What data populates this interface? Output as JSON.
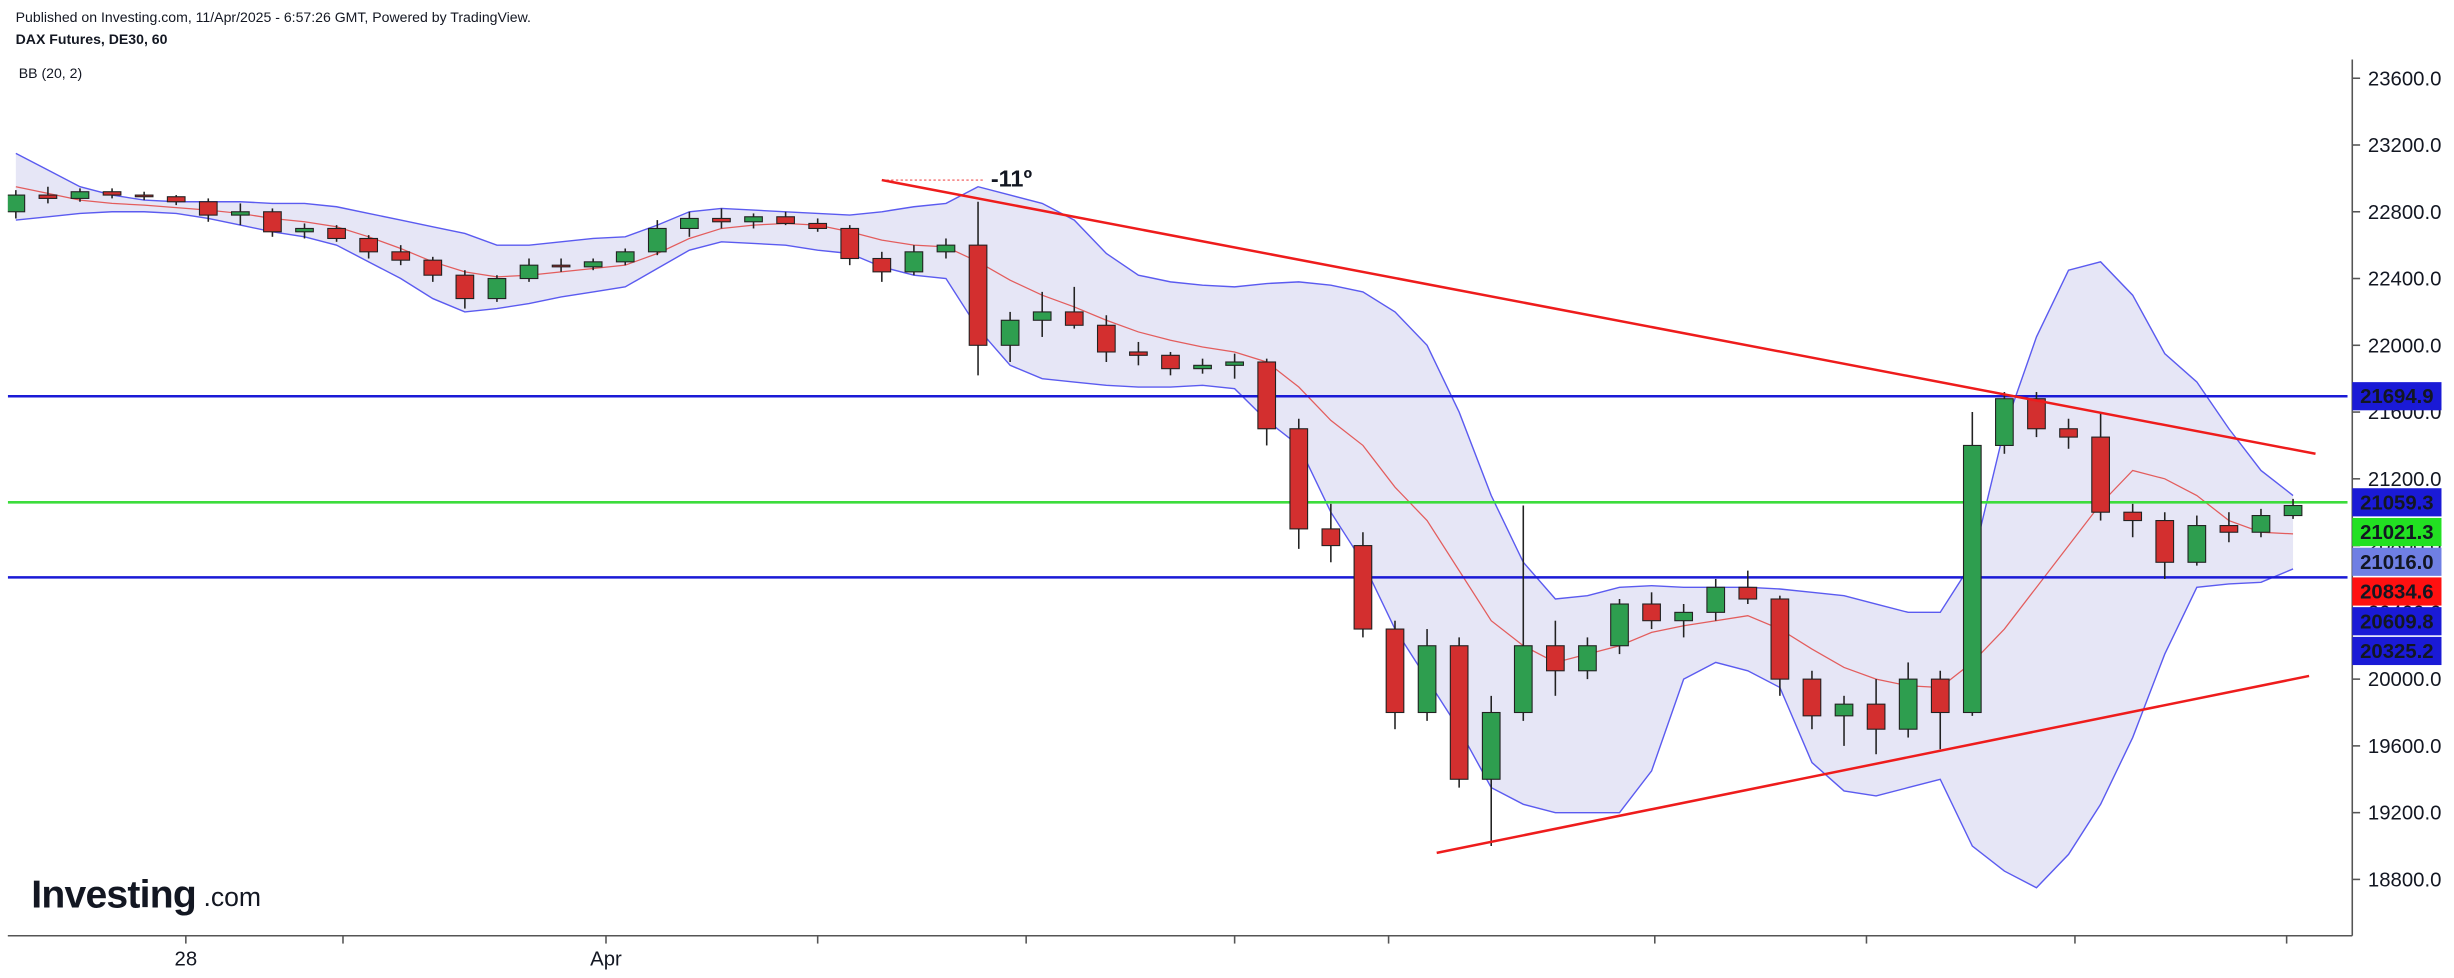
{
  "chart_data": {
    "type": "candlestick",
    "subtitle": "Published on Investing.com, 11/Apr/2025 - 6:57:26 GMT, Powered by TradingView.",
    "title": "DAX Futures, DE30, 60",
    "indicator_label": "BB (20, 2)",
    "logo": {
      "brand": "Investing",
      "suffix": ".com"
    },
    "xlim": [
      -0.25,
      72.7
    ],
    "ylim": [
      18462.5,
      23740.6
    ],
    "xticks": [
      {
        "value": 5.3,
        "label": "28"
      },
      {
        "value": 10.2,
        "label": null
      },
      {
        "value": 18.4,
        "label": "Apr"
      },
      {
        "value": 25,
        "label": null
      },
      {
        "value": 31.5,
        "label": null
      },
      {
        "value": 38,
        "label": null
      },
      {
        "value": 42.8,
        "label": null
      },
      {
        "value": 51.1,
        "label": null
      },
      {
        "value": 57.7,
        "label": null
      },
      {
        "value": 64.2,
        "label": null
      },
      {
        "value": 70.8,
        "label": null
      }
    ],
    "yticks": [
      {
        "value": 18800,
        "label": "18800.0"
      },
      {
        "value": 19200,
        "label": "19200.0"
      },
      {
        "value": 19600,
        "label": "19600.0"
      },
      {
        "value": 20000,
        "label": "20000.0"
      },
      {
        "value": 20400,
        "label": "20400.0"
      },
      {
        "value": 20800,
        "label": "20800.0"
      },
      {
        "value": 21200,
        "label": "21200.0"
      },
      {
        "value": 21600,
        "label": "21600.0"
      },
      {
        "value": 22000,
        "label": "22000.0"
      },
      {
        "value": 22400,
        "label": "22400.0"
      },
      {
        "value": 22800,
        "label": "22800.0"
      },
      {
        "value": 23200,
        "label": "23200.0"
      },
      {
        "value": 23600,
        "label": "23600.0"
      }
    ],
    "up_color": "#2e9e4f",
    "down_color": "#d32f2f",
    "ohlc": {
      "open": [
        22800,
        22900,
        22880,
        22920,
        22900,
        22890,
        22860,
        22780,
        22800,
        22680,
        22700,
        22640,
        22560,
        22510,
        22420,
        22280,
        22400,
        22480,
        22470,
        22500,
        22560,
        22700,
        22760,
        22740,
        22770,
        22730,
        22700,
        22520,
        22440,
        22560,
        22600,
        22000,
        22150,
        22200,
        22120,
        21960,
        21940,
        21860,
        21880,
        21900,
        21500,
        20900,
        20800,
        20300,
        19800,
        20200,
        19400,
        19800,
        20200,
        20050,
        20200,
        20450,
        20350,
        20400,
        20550,
        20480,
        20000,
        19780,
        19850,
        19700,
        20000,
        19800,
        21400,
        21680,
        21500,
        21450,
        21000,
        20950,
        20700,
        20920,
        20880,
        20980
      ],
      "high": [
        22930,
        22950,
        22940,
        22940,
        22920,
        22900,
        22880,
        22850,
        22820,
        22730,
        22720,
        22660,
        22600,
        22530,
        22450,
        22420,
        22520,
        22520,
        22520,
        22580,
        22750,
        22800,
        22820,
        22790,
        22800,
        22760,
        22720,
        22560,
        22600,
        22640,
        22860,
        22200,
        22320,
        22350,
        22180,
        22020,
        21960,
        21920,
        21950,
        21920,
        21560,
        21050,
        20880,
        20350,
        20300,
        20250,
        19900,
        21040,
        20350,
        20250,
        20480,
        20520,
        20450,
        20600,
        20650,
        20500,
        20050,
        19900,
        20000,
        20100,
        20050,
        21600,
        21720,
        21720,
        21560,
        21600,
        21050,
        21000,
        20980,
        21000,
        21020,
        21080
      ],
      "low": [
        22760,
        22850,
        22860,
        22880,
        22870,
        22840,
        22740,
        22720,
        22650,
        22640,
        22620,
        22520,
        22480,
        22380,
        22220,
        22260,
        22380,
        22440,
        22450,
        22480,
        22540,
        22650,
        22700,
        22700,
        22720,
        22680,
        22480,
        22380,
        22420,
        22520,
        21820,
        21900,
        22050,
        22100,
        21900,
        21880,
        21820,
        21830,
        21800,
        21400,
        20780,
        20700,
        20250,
        19700,
        19750,
        19350,
        19000,
        19750,
        19900,
        20000,
        20150,
        20300,
        20250,
        20350,
        20450,
        19900,
        19700,
        19600,
        19550,
        19650,
        19580,
        19780,
        21350,
        21450,
        21380,
        20950,
        20850,
        20600,
        20680,
        20820,
        20850,
        20960
      ],
      "close": [
        22900,
        22880,
        22920,
        22900,
        22890,
        22860,
        22780,
        22800,
        22680,
        22700,
        22640,
        22560,
        22510,
        22420,
        22280,
        22400,
        22480,
        22470,
        22500,
        22560,
        22700,
        22760,
        22740,
        22770,
        22730,
        22700,
        22520,
        22440,
        22560,
        22600,
        22000,
        22150,
        22200,
        22120,
        21960,
        21940,
        21860,
        21880,
        21900,
        21500,
        20900,
        20800,
        20300,
        19800,
        20200,
        19400,
        19800,
        20200,
        20050,
        20200,
        20450,
        20350,
        20400,
        20550,
        20480,
        20000,
        19780,
        19850,
        19700,
        20000,
        19800,
        21400,
        21680,
        21500,
        21450,
        21000,
        20950,
        20700,
        20920,
        20880,
        20980,
        21040
      ]
    },
    "bollinger": {
      "band_color": "#5b5bf0",
      "fill_color": "#d6d6f0",
      "middle_color": "#e35d5d",
      "upper": [
        23150,
        23050,
        22950,
        22900,
        22870,
        22860,
        22860,
        22860,
        22850,
        22850,
        22830,
        22790,
        22750,
        22710,
        22670,
        22600,
        22600,
        22620,
        22640,
        22650,
        22720,
        22800,
        22820,
        22810,
        22800,
        22790,
        22780,
        22800,
        22830,
        22850,
        22950,
        22900,
        22850,
        22750,
        22550,
        22420,
        22380,
        22360,
        22350,
        22370,
        22380,
        22360,
        22320,
        22200,
        22000,
        21600,
        21100,
        20700,
        20480,
        20500,
        20550,
        20560,
        20550,
        20550,
        20550,
        20540,
        20520,
        20500,
        20450,
        20400,
        20400,
        20700,
        21500,
        22050,
        22450,
        22500,
        22300,
        21950,
        21780,
        21500,
        21250,
        21100
      ],
      "middle": [
        22950,
        22910,
        22870,
        22850,
        22840,
        22825,
        22810,
        22790,
        22760,
        22740,
        22710,
        22650,
        22580,
        22500,
        22440,
        22410,
        22420,
        22440,
        22460,
        22480,
        22550,
        22640,
        22700,
        22720,
        22730,
        22720,
        22680,
        22630,
        22600,
        22590,
        22500,
        22390,
        22300,
        22230,
        22150,
        22080,
        22030,
        21990,
        21960,
        21900,
        21750,
        21550,
        21400,
        21150,
        20950,
        20650,
        20350,
        20200,
        20100,
        20150,
        20200,
        20280,
        20320,
        20350,
        20380,
        20300,
        20180,
        20070,
        20000,
        19960,
        19950,
        20100,
        20300,
        20550,
        20800,
        21050,
        21250,
        21200,
        21100,
        20950,
        20880,
        20870
      ],
      "lower": [
        22750,
        22770,
        22790,
        22800,
        22800,
        22790,
        22760,
        22720,
        22680,
        22650,
        22600,
        22500,
        22400,
        22280,
        22200,
        22220,
        22250,
        22290,
        22320,
        22350,
        22460,
        22570,
        22620,
        22610,
        22600,
        22570,
        22550,
        22470,
        22420,
        22400,
        22100,
        21880,
        21800,
        21780,
        21760,
        21750,
        21750,
        21760,
        21740,
        21550,
        21400,
        21000,
        20700,
        20300,
        20000,
        19700,
        19350,
        19250,
        19200,
        19200,
        19200,
        19450,
        20000,
        20100,
        20050,
        19950,
        19500,
        19330,
        19300,
        19350,
        19400,
        19000,
        18850,
        18750,
        18950,
        19250,
        19650,
        20150,
        20550,
        20570,
        20580,
        20660
      ]
    },
    "levels": [
      {
        "value": 21694.9,
        "color": "#1a1ad6"
      },
      {
        "value": 21059.3,
        "color": "#3cdc3c"
      },
      {
        "value": 20609.8,
        "color": "#1a1ad6"
      }
    ],
    "trendlines": [
      {
        "x": [
          27,
          71.7
        ],
        "y": [
          22990,
          21350
        ],
        "color": "#ee1c1c"
      },
      {
        "x": [
          44.3,
          71.5
        ],
        "y": [
          18959,
          20019
        ],
        "color": "#ee1c1c"
      }
    ],
    "annotation": {
      "text": "-11º",
      "color": "#138a56"
    },
    "price_labels": [
      {
        "value": 21694.9,
        "color": "#1a1ad6",
        "text_color": "#ffffff"
      },
      {
        "value": 21059.3,
        "color": "#1a1ad6",
        "text_color": "#ffffff"
      },
      {
        "value": 21021.3,
        "color": "#22e022",
        "text_color": "#000000"
      },
      {
        "value": 21016,
        "label": "21016.0",
        "color": "#6f7fe3",
        "text_color": "#ffffff"
      },
      {
        "value": 20834.6,
        "color": "#ff1010",
        "text_color": "#ffffff"
      },
      {
        "value": 20609.8,
        "color": "#1a1ad6",
        "text_color": "#ffffff"
      },
      {
        "value": 20325.2,
        "color": "#1a1ad6",
        "text_color": "#ffffff"
      }
    ]
  }
}
